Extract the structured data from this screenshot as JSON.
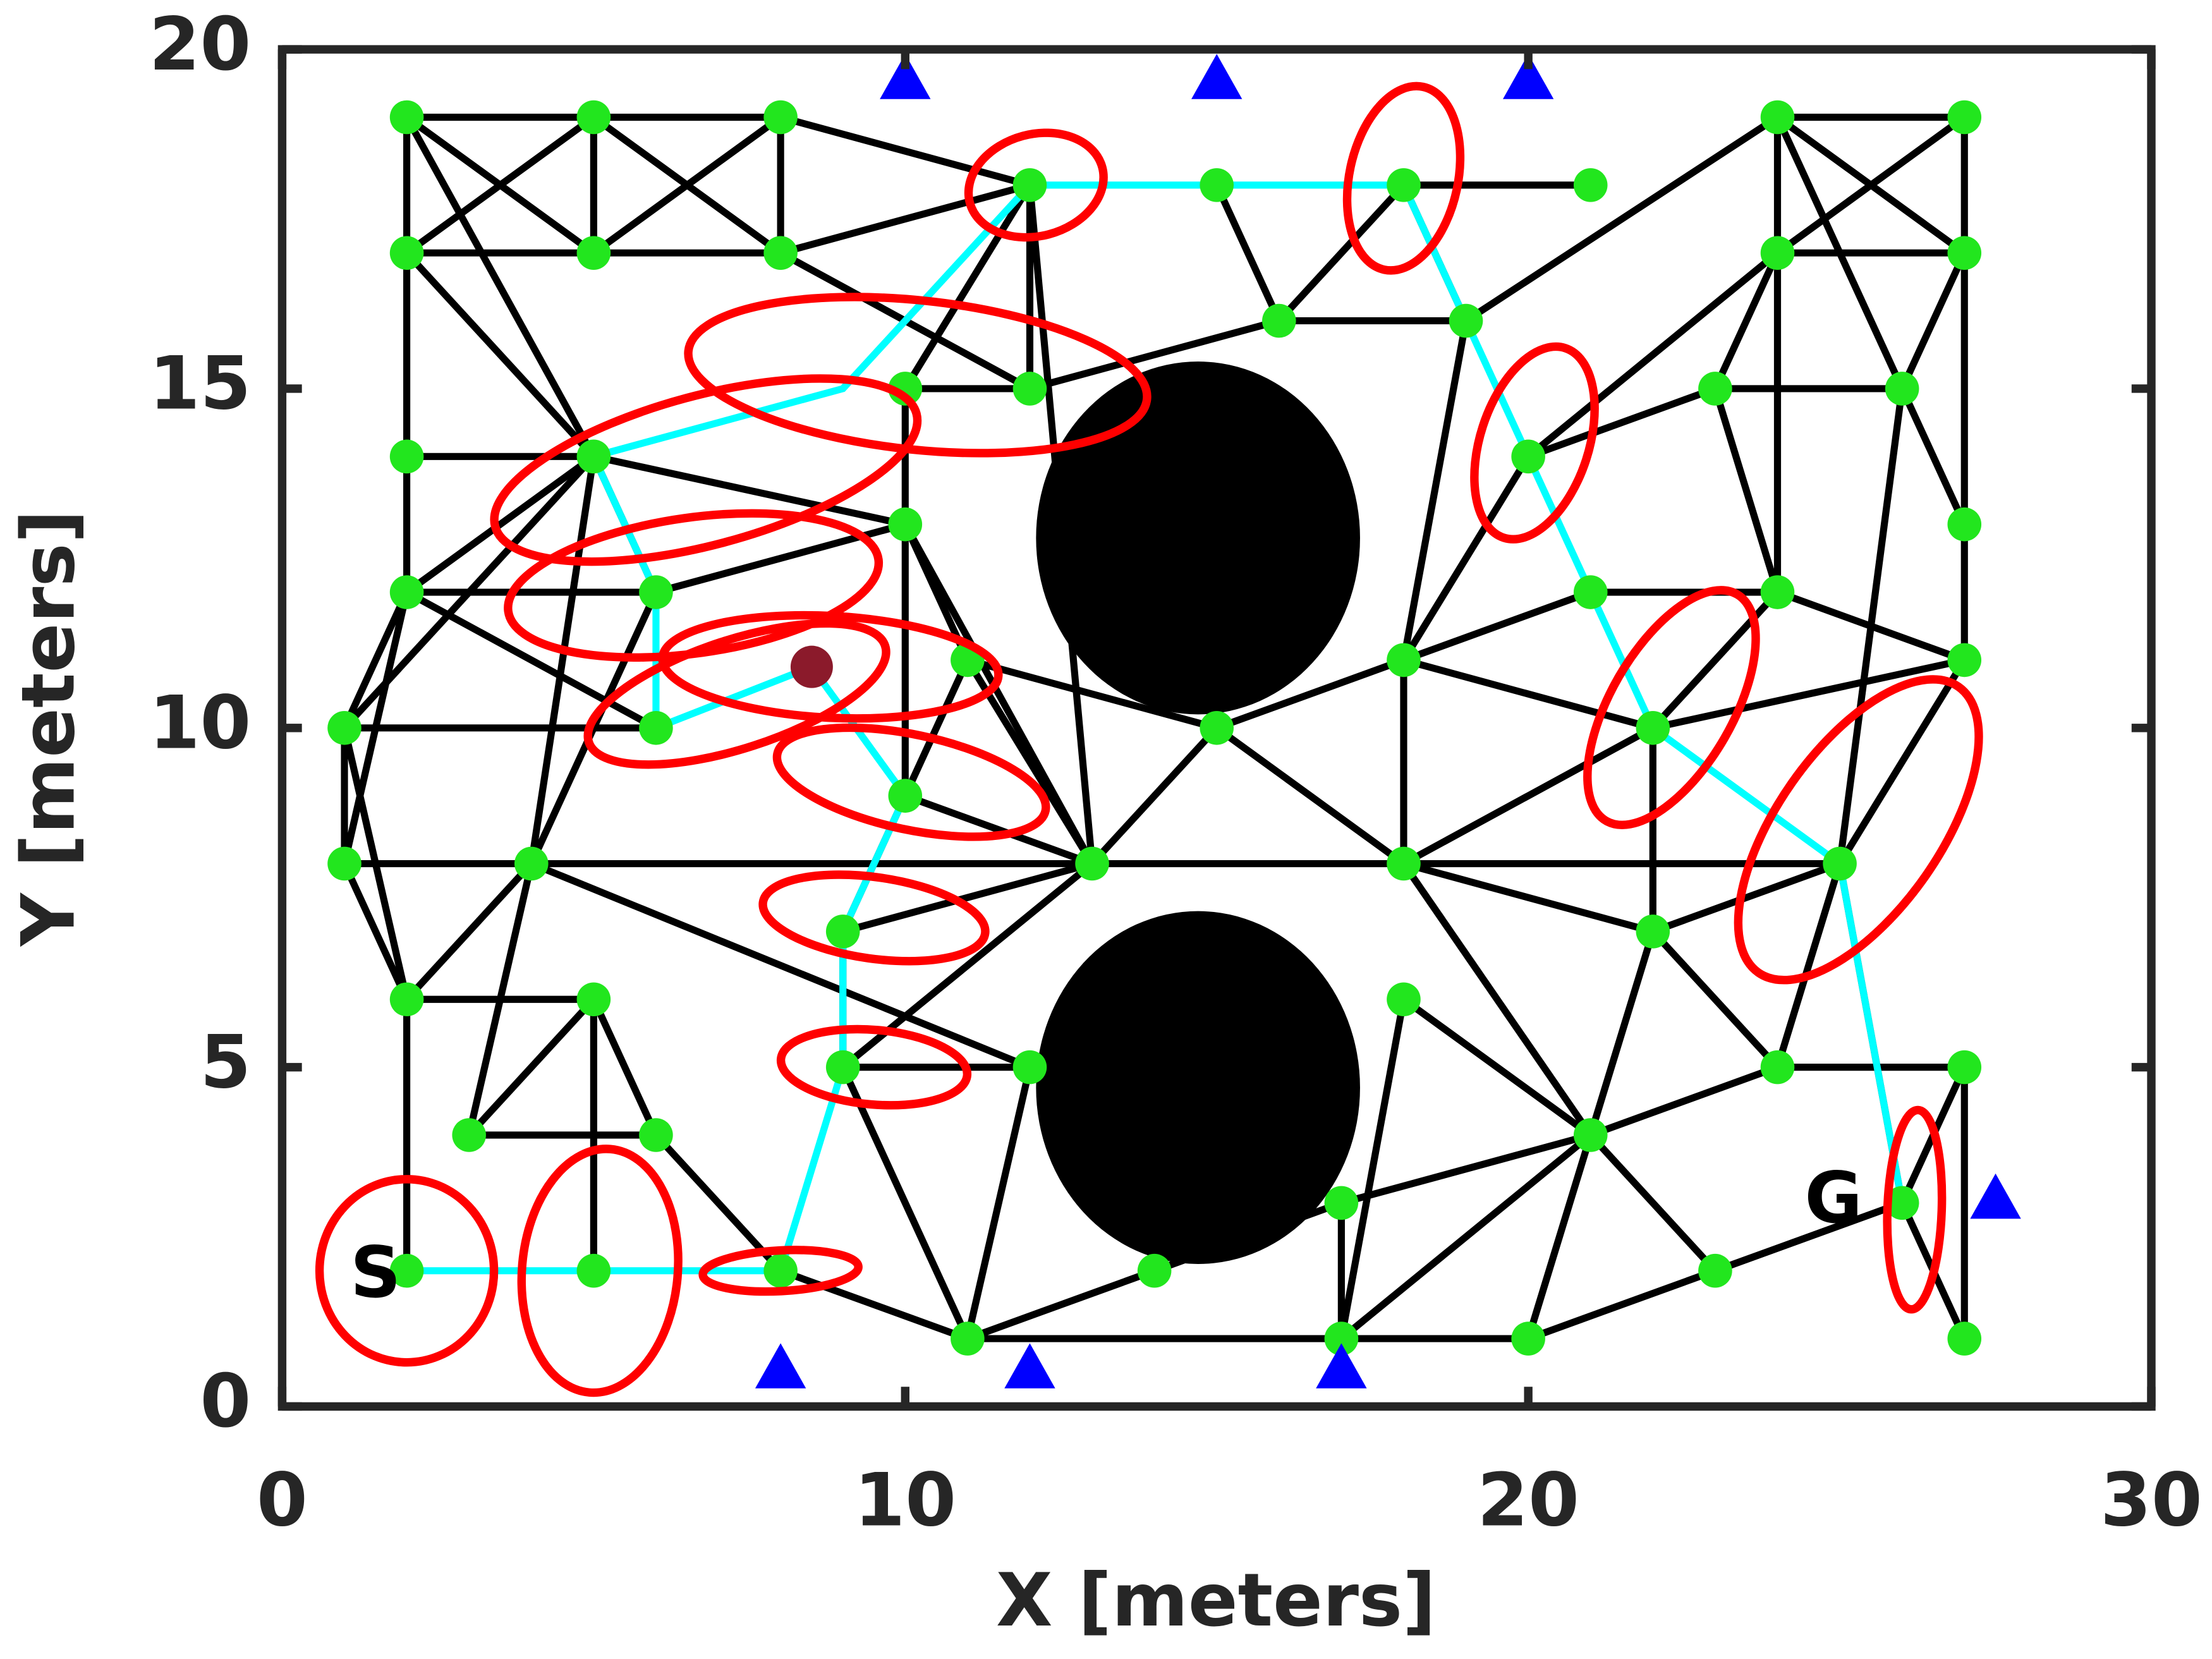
{
  "chart_data": {
    "type": "scatter",
    "xlabel": "X [meters]",
    "ylabel": "Y [meters]",
    "xlim": [
      0,
      30
    ],
    "ylim": [
      0,
      20
    ],
    "xticks": [
      0,
      10,
      20,
      30
    ],
    "yticks": [
      0,
      5,
      10,
      15,
      20
    ],
    "grid": false,
    "nodes": {
      "color": "#22e61e",
      "x": [
        2,
        5,
        8,
        2,
        5,
        8,
        12,
        15,
        18,
        21,
        24,
        27,
        24,
        27,
        16,
        19,
        10,
        12,
        23,
        26,
        2,
        5,
        20,
        10,
        27,
        2,
        6,
        21,
        24,
        11,
        18,
        27,
        1,
        6,
        15,
        22,
        10,
        1,
        4,
        13,
        18,
        25,
        9,
        22,
        2,
        5,
        18,
        9,
        12,
        24,
        27,
        3,
        6,
        21,
        17,
        26,
        2,
        5,
        8,
        14,
        23,
        11,
        17,
        20,
        27
      ],
      "y": [
        19,
        19,
        19,
        17,
        17,
        17,
        18,
        18,
        18,
        18,
        19,
        19,
        17,
        17,
        16,
        16,
        15,
        15,
        15,
        15,
        14,
        14,
        14,
        13,
        13,
        12,
        12,
        12,
        12,
        11,
        11,
        11,
        10,
        10,
        10,
        10,
        9,
        8,
        8,
        8,
        8,
        8,
        7,
        7,
        6,
        6,
        6,
        5,
        5,
        5,
        5,
        4,
        4,
        4,
        3,
        3,
        2,
        2,
        2,
        2,
        2,
        1,
        1,
        1,
        1
      ]
    },
    "edge_color": "#000000",
    "edges": [
      [
        0,
        1
      ],
      [
        1,
        2
      ],
      [
        0,
        3
      ],
      [
        1,
        4
      ],
      [
        2,
        5
      ],
      [
        3,
        4
      ],
      [
        4,
        5
      ],
      [
        0,
        4
      ],
      [
        1,
        3
      ],
      [
        1,
        5
      ],
      [
        2,
        4
      ],
      [
        0,
        21
      ],
      [
        3,
        21
      ],
      [
        3,
        20
      ],
      [
        2,
        6
      ],
      [
        5,
        6
      ],
      [
        5,
        17
      ],
      [
        6,
        16
      ],
      [
        6,
        17
      ],
      [
        6,
        39
      ],
      [
        17,
        14
      ],
      [
        7,
        14
      ],
      [
        8,
        14
      ],
      [
        14,
        15
      ],
      [
        15,
        8
      ],
      [
        15,
        10
      ],
      [
        15,
        30
      ],
      [
        8,
        9
      ],
      [
        10,
        11
      ],
      [
        10,
        12
      ],
      [
        11,
        13
      ],
      [
        12,
        13
      ],
      [
        10,
        13
      ],
      [
        11,
        12
      ],
      [
        12,
        18
      ],
      [
        10,
        19
      ],
      [
        13,
        19
      ],
      [
        18,
        19
      ],
      [
        12,
        28
      ],
      [
        13,
        24
      ],
      [
        19,
        24
      ],
      [
        24,
        31
      ],
      [
        19,
        41
      ],
      [
        18,
        28
      ],
      [
        18,
        22
      ],
      [
        22,
        30
      ],
      [
        22,
        12
      ],
      [
        27,
        28
      ],
      [
        27,
        30
      ],
      [
        28,
        31
      ],
      [
        28,
        35
      ],
      [
        31,
        35
      ],
      [
        30,
        35
      ],
      [
        30,
        34
      ],
      [
        30,
        40
      ],
      [
        34,
        40
      ],
      [
        34,
        29
      ],
      [
        34,
        39
      ],
      [
        23,
        39
      ],
      [
        29,
        39
      ],
      [
        23,
        29
      ],
      [
        23,
        36
      ],
      [
        23,
        26
      ],
      [
        23,
        21
      ],
      [
        16,
        17
      ],
      [
        16,
        23
      ],
      [
        20,
        21
      ],
      [
        20,
        25
      ],
      [
        21,
        25
      ],
      [
        21,
        26
      ],
      [
        21,
        38
      ],
      [
        25,
        26
      ],
      [
        25,
        32
      ],
      [
        25,
        37
      ],
      [
        25,
        33
      ],
      [
        29,
        42
      ],
      [
        36,
        39
      ],
      [
        32,
        33
      ],
      [
        32,
        37
      ],
      [
        32,
        44
      ],
      [
        32,
        21
      ],
      [
        37,
        38
      ],
      [
        37,
        44
      ],
      [
        38,
        39
      ],
      [
        38,
        44
      ],
      [
        38,
        51
      ],
      [
        38,
        26
      ],
      [
        38,
        48
      ],
      [
        39,
        42
      ],
      [
        39,
        40
      ],
      [
        39,
        47
      ],
      [
        42,
        47
      ],
      [
        47,
        48
      ],
      [
        47,
        61
      ],
      [
        44,
        45
      ],
      [
        44,
        56
      ],
      [
        45,
        51
      ],
      [
        45,
        57
      ],
      [
        45,
        52
      ],
      [
        51,
        52
      ],
      [
        52,
        58
      ],
      [
        58,
        61
      ],
      [
        61,
        62
      ],
      [
        61,
        59
      ],
      [
        59,
        54
      ],
      [
        61,
        48
      ],
      [
        54,
        62
      ],
      [
        54,
        53
      ],
      [
        62,
        63
      ],
      [
        62,
        53
      ],
      [
        62,
        46
      ],
      [
        63,
        53
      ],
      [
        63,
        55
      ],
      [
        53,
        60
      ],
      [
        53,
        49
      ],
      [
        53,
        40
      ],
      [
        53,
        46
      ],
      [
        53,
        43
      ],
      [
        40,
        43
      ],
      [
        40,
        41
      ],
      [
        40,
        35
      ],
      [
        43,
        41
      ],
      [
        43,
        35
      ],
      [
        43,
        49
      ],
      [
        41,
        31
      ],
      [
        41,
        49
      ],
      [
        41,
        55
      ],
      [
        49,
        50
      ],
      [
        50,
        64
      ],
      [
        50,
        55
      ],
      [
        60,
        55
      ],
      [
        55,
        64
      ]
    ],
    "path": {
      "color": "#00ffff",
      "x": [
        2,
        5,
        8,
        9,
        9,
        10,
        8.5,
        6,
        6,
        5,
        9,
        12,
        15,
        18,
        19,
        20,
        21,
        22,
        25,
        26
      ],
      "y": [
        2,
        2,
        2,
        5,
        7,
        9,
        10.9,
        10,
        12,
        14,
        15,
        18,
        18,
        18,
        16,
        14,
        12,
        10,
        8,
        3
      ]
    },
    "estimate": {
      "color": "#8b1a2b",
      "x": 8.5,
      "y": 10.9
    },
    "landmarks": {
      "color": "#0000ff",
      "x": [
        10,
        15,
        20,
        8,
        12,
        17,
        27.5
      ],
      "y": [
        19.6,
        19.6,
        19.6,
        0.6,
        0.6,
        0.6,
        3.1
      ]
    },
    "obstacles": {
      "color": "#000000",
      "cx": [
        14.7,
        14.7
      ],
      "cy": [
        12.8,
        4.7
      ],
      "r": [
        2.6,
        2.6
      ]
    },
    "ellipse_color": "#ff0000",
    "ellipses": [
      {
        "cx": 2,
        "cy": 2,
        "rx": 1.4,
        "ry": 1.35,
        "angle": 0
      },
      {
        "cx": 5.1,
        "cy": 2,
        "rx": 1.25,
        "ry": 1.8,
        "angle": 5
      },
      {
        "cx": 8,
        "cy": 2,
        "rx": 1.25,
        "ry": 0.3,
        "angle": -3
      },
      {
        "cx": 9.5,
        "cy": 5,
        "rx": 1.5,
        "ry": 0.55,
        "angle": 5
      },
      {
        "cx": 9.5,
        "cy": 7.2,
        "rx": 1.8,
        "ry": 0.6,
        "angle": 8
      },
      {
        "cx": 10.1,
        "cy": 9.2,
        "rx": 2.2,
        "ry": 0.7,
        "angle": 12
      },
      {
        "cx": 7.3,
        "cy": 10.5,
        "rx": 2.5,
        "ry": 0.8,
        "angle": -18
      },
      {
        "cx": 8.8,
        "cy": 10.9,
        "rx": 2.7,
        "ry": 0.75,
        "angle": 3
      },
      {
        "cx": 6.6,
        "cy": 12.1,
        "rx": 3,
        "ry": 1,
        "angle": -8
      },
      {
        "cx": 6.8,
        "cy": 13.8,
        "rx": 3.5,
        "ry": 1.1,
        "angle": -15
      },
      {
        "cx": 10.2,
        "cy": 15.2,
        "rx": 3.7,
        "ry": 1.1,
        "angle": 6
      },
      {
        "cx": 12.1,
        "cy": 18,
        "rx": 1.1,
        "ry": 0.75,
        "angle": -15
      },
      {
        "cx": 18,
        "cy": 18.1,
        "rx": 1.5,
        "ry": 0.8,
        "angle": -78
      },
      {
        "cx": 20.1,
        "cy": 14.2,
        "rx": 1.6,
        "ry": 0.8,
        "angle": -72
      },
      {
        "cx": 22.3,
        "cy": 10.3,
        "rx": 2.1,
        "ry": 0.9,
        "angle": -60
      },
      {
        "cx": 25.3,
        "cy": 8.5,
        "rx": 2.8,
        "ry": 1.2,
        "angle": -55
      },
      {
        "cx": 26.2,
        "cy": 2.9,
        "rx": 1.6,
        "ry": 0.4,
        "angle": -88
      }
    ],
    "annotations": [
      {
        "text": "S",
        "x": 1.5,
        "y": 1.9
      },
      {
        "text": "G",
        "x": 24.9,
        "y": 3.0
      }
    ]
  }
}
